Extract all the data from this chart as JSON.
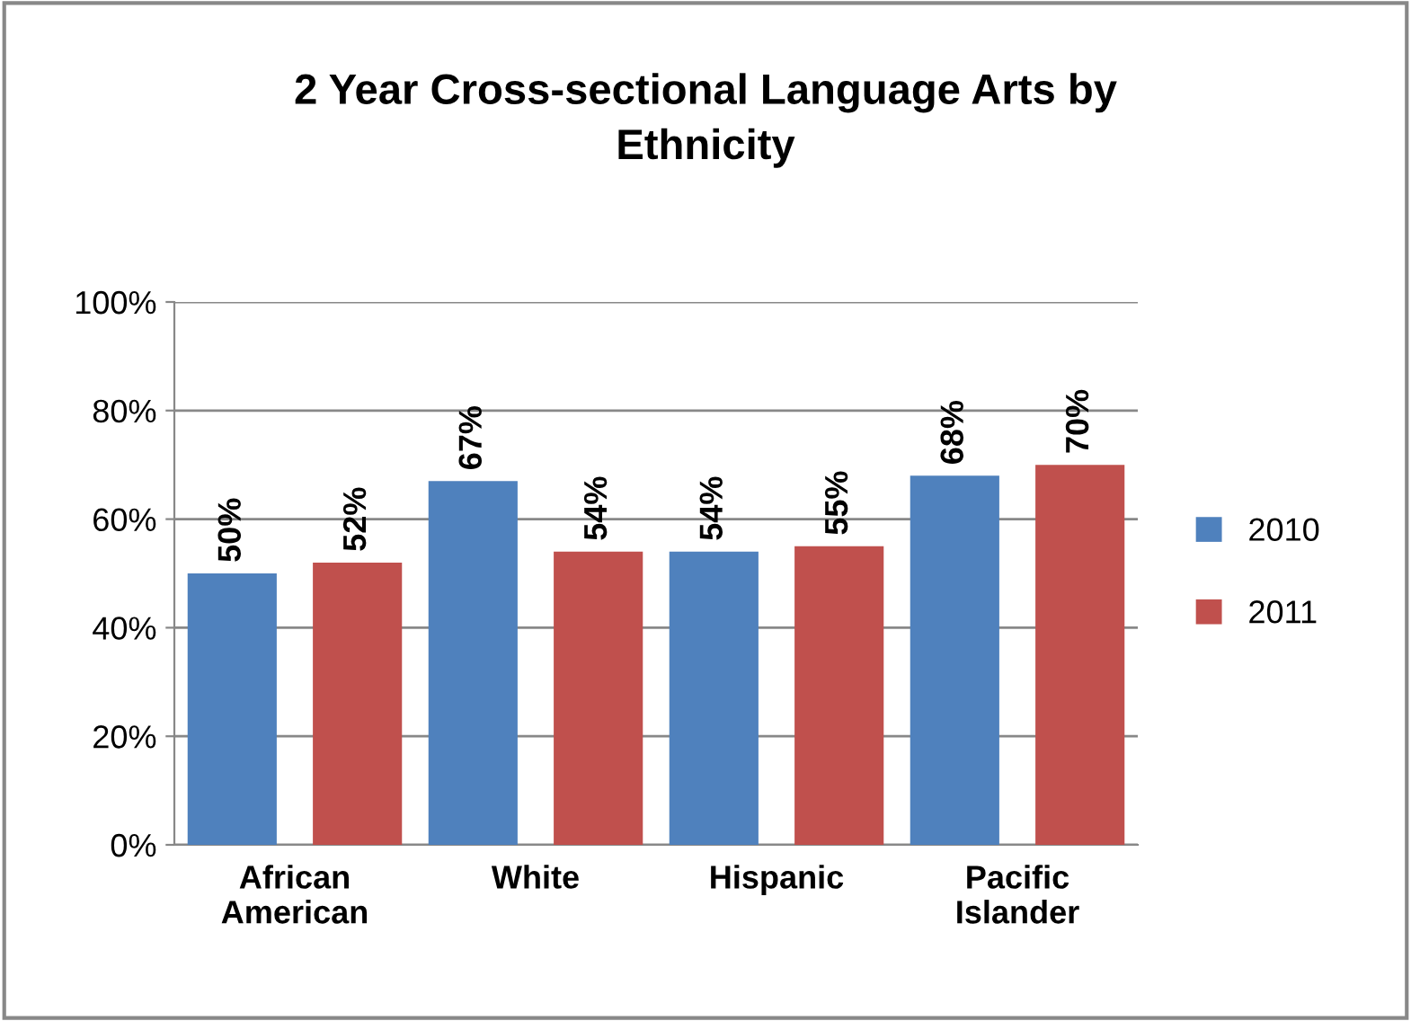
{
  "chart_data": {
    "type": "bar",
    "title": "2 Year Cross-sectional Language Arts by\nEthnicity",
    "categories": [
      "African\nAmerican",
      "White",
      "Hispanic",
      "Pacific\nIslander"
    ],
    "series": [
      {
        "name": "2010",
        "color": "#4f81bd",
        "values": [
          50,
          67,
          54,
          68
        ],
        "value_labels": [
          "50%",
          "67%",
          "54%",
          "68%"
        ]
      },
      {
        "name": "2011",
        "color": "#c0504d",
        "values": [
          52,
          54,
          55,
          70
        ],
        "value_labels": [
          "52%",
          "54%",
          "55%",
          "70%"
        ]
      }
    ],
    "ylim": [
      0,
      100
    ],
    "yticks": [
      {
        "value": 0,
        "label": "0%"
      },
      {
        "value": 20,
        "label": "20%"
      },
      {
        "value": 40,
        "label": "40%"
      },
      {
        "value": 60,
        "label": "60%"
      },
      {
        "value": 80,
        "label": "80%"
      },
      {
        "value": 100,
        "label": "100%"
      }
    ],
    "grid": "y",
    "legend": "right"
  }
}
